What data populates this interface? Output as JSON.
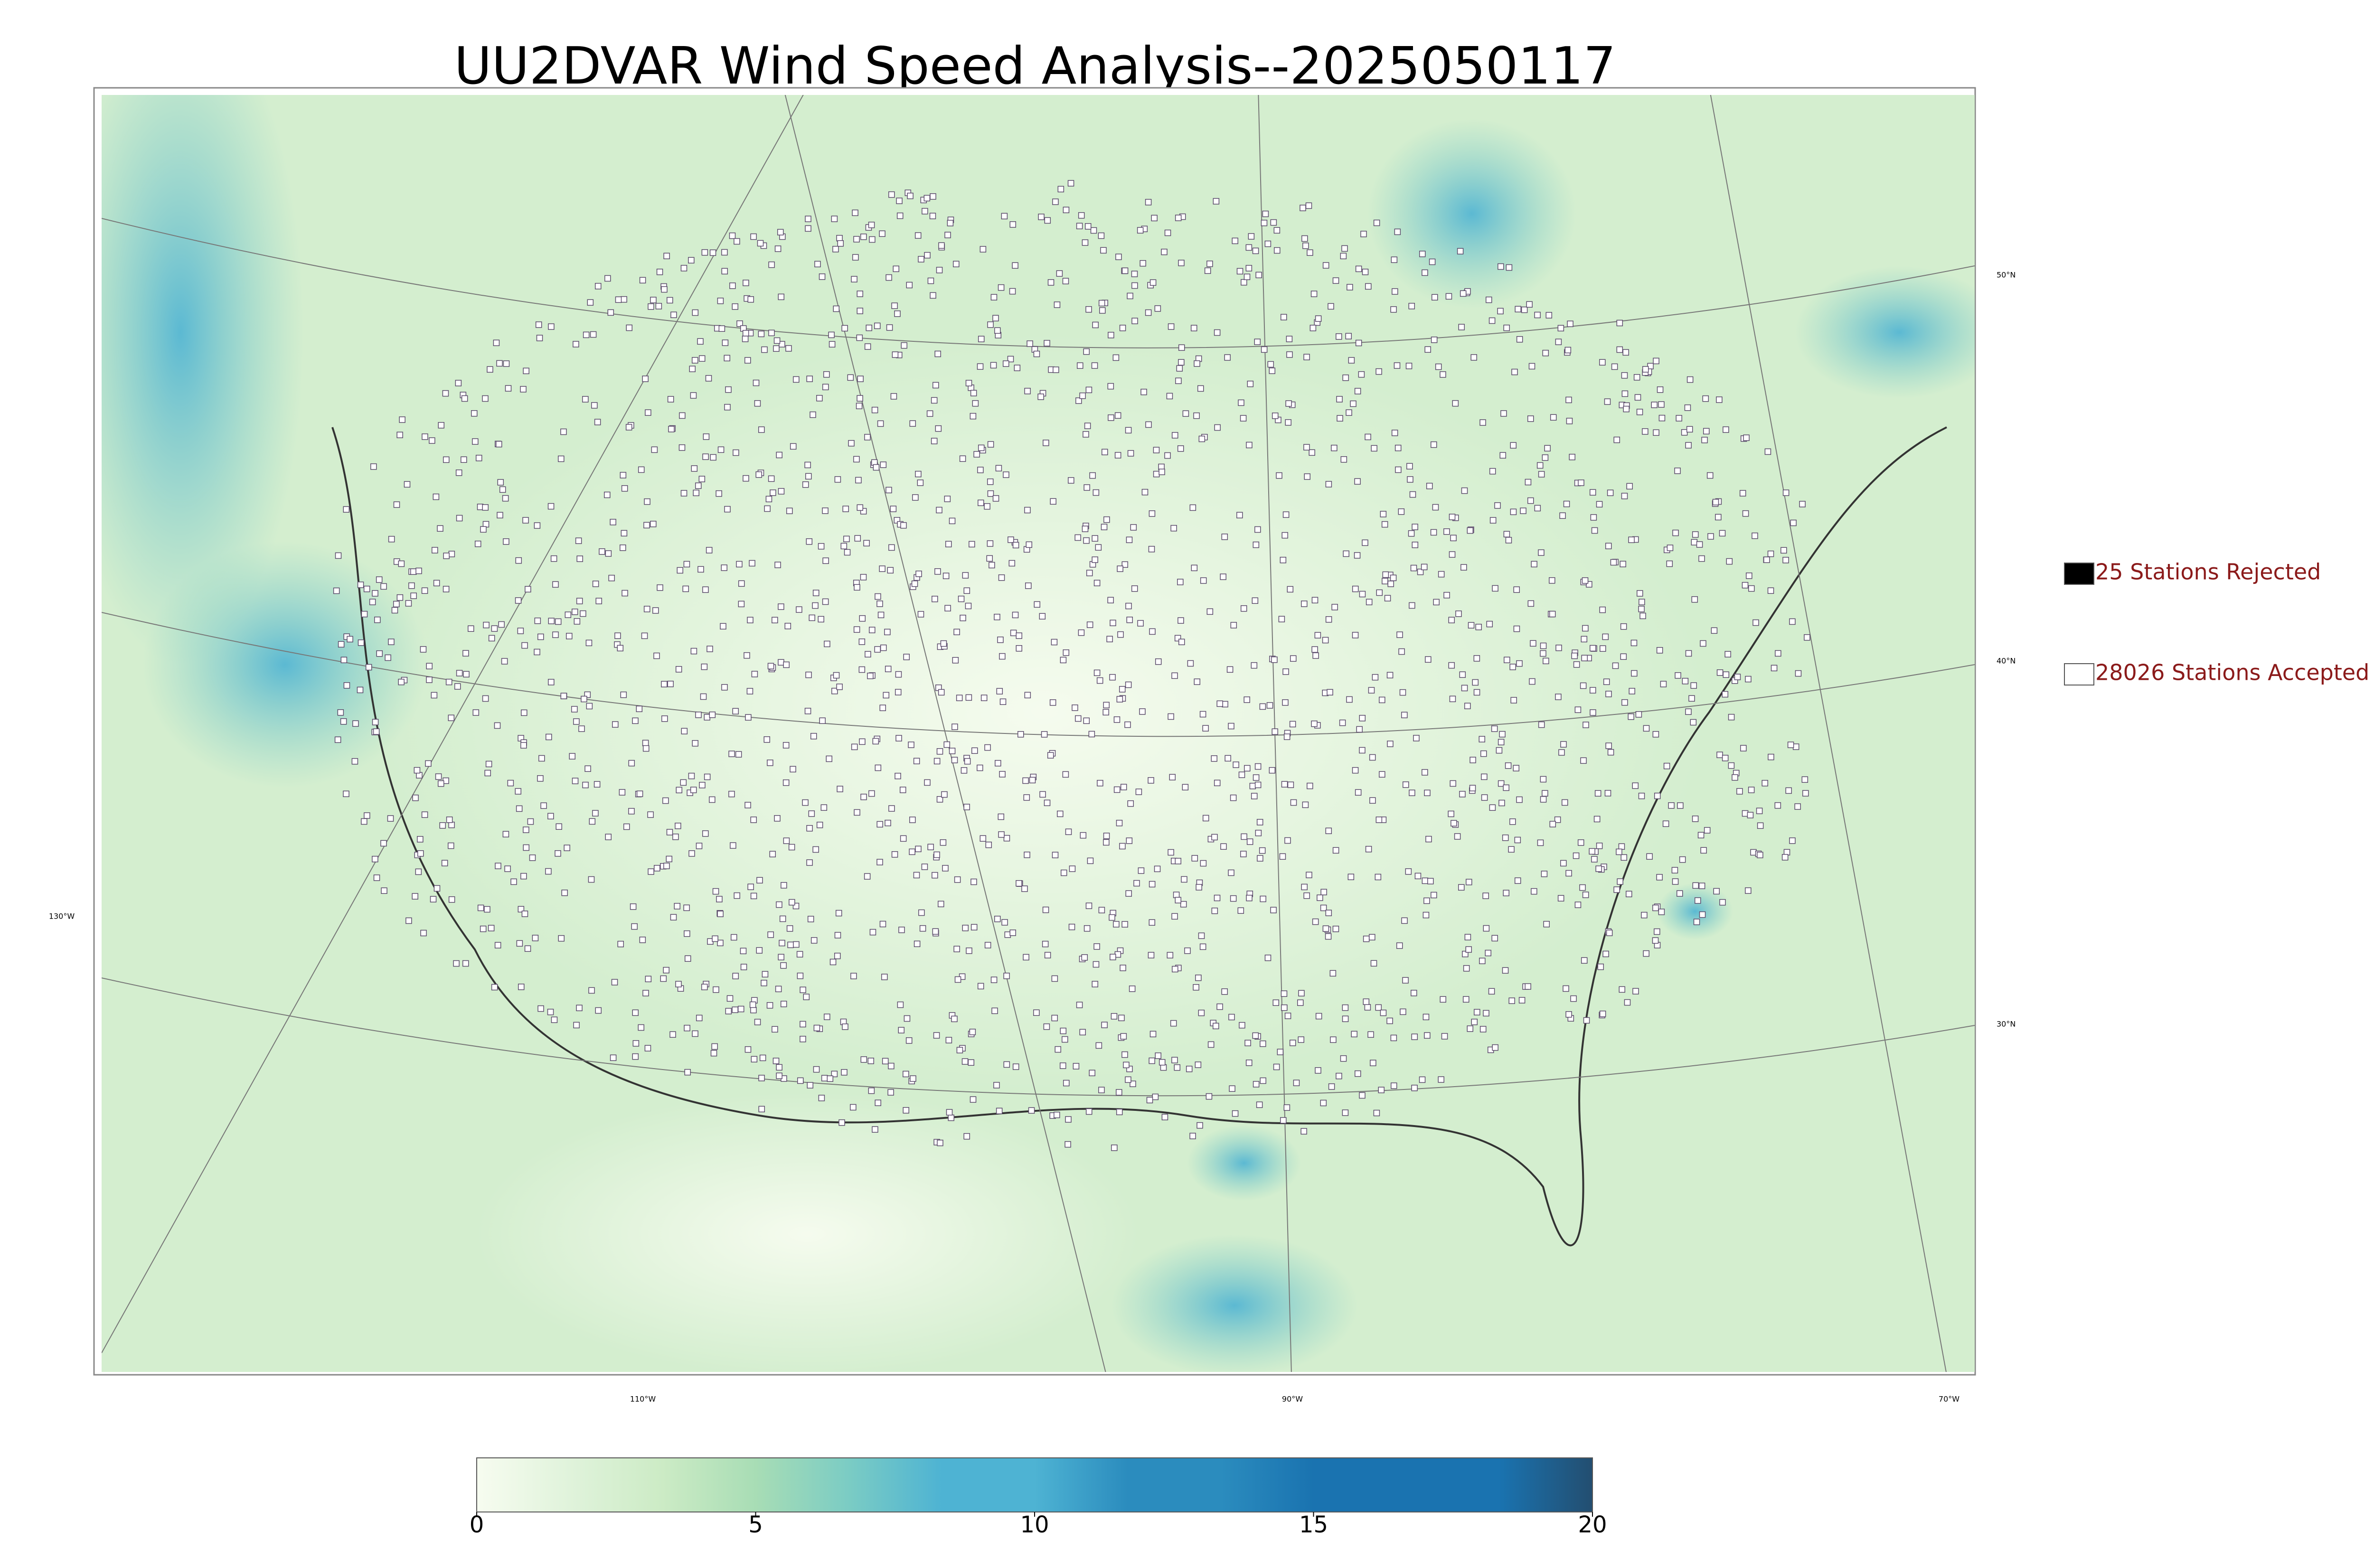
{
  "title": "UU2DVAR Wind Speed Analysis--2025050117",
  "graticule_labels": {
    "lat": [
      "50°N",
      "40°N",
      "30°N"
    ],
    "lon": [
      "130°W",
      "110°W",
      "90°W",
      "70°W"
    ]
  },
  "legend": [
    {
      "label": "25 Stations Rejected",
      "marker": "#000000"
    },
    {
      "label": "28026 Stations Accepted",
      "marker": "#ffffff"
    }
  ],
  "colorbar": {
    "lim": [
      0,
      20
    ],
    "ticks": [
      0,
      5,
      10,
      15,
      20
    ],
    "colors": [
      "#f7fcf0",
      "#e0f3db",
      "#ccebc5",
      "#a8ddb5",
      "#7bccc4",
      "#4eb3d3",
      "#4eb3d3",
      "#2b8cbe",
      "#2b8cbe",
      "#1a73b0",
      "#1a73b0",
      "#1a73b0",
      "#234e70"
    ]
  }
}
